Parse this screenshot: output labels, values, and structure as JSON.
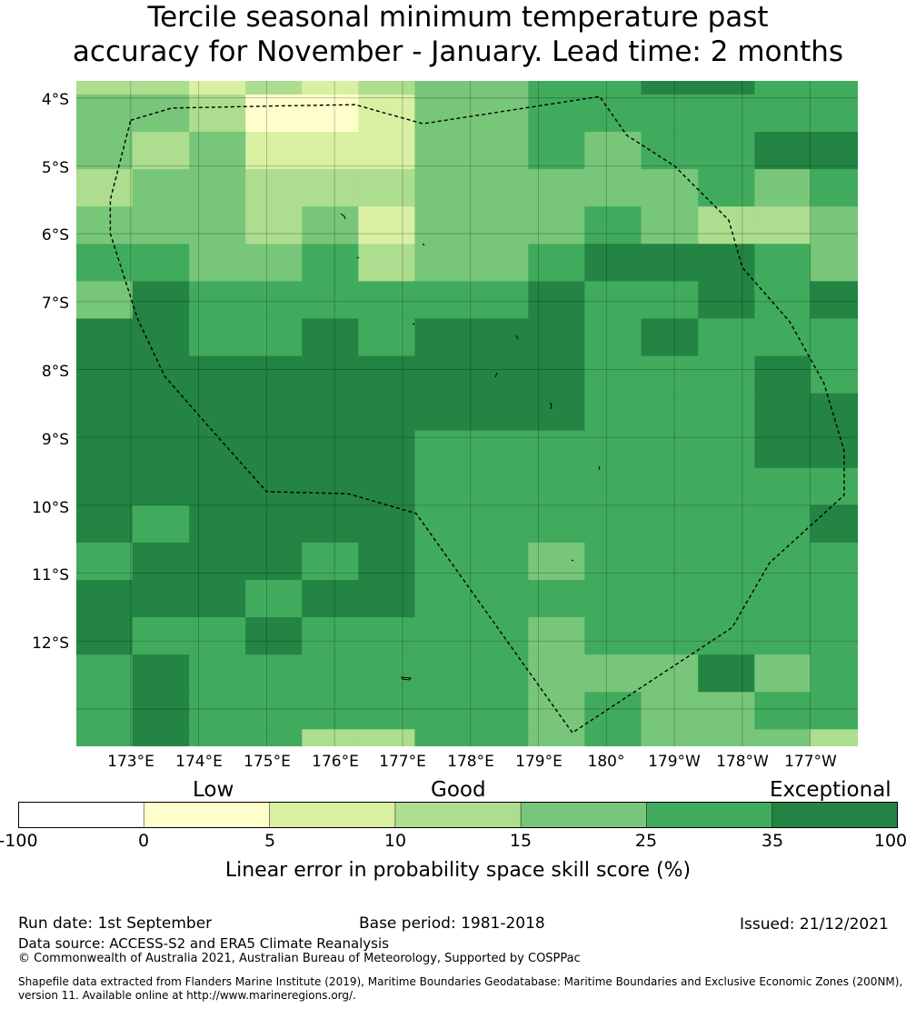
{
  "title": {
    "line1": "Tercile seasonal minimum temperature past",
    "line2": "accuracy for November - January. Lead time: 2 months"
  },
  "axes": {
    "lat_ticks": [
      "4°S",
      "5°S",
      "6°S",
      "7°S",
      "8°S",
      "9°S",
      "10°S",
      "11°S",
      "12°S"
    ],
    "lon_ticks": [
      "173°E",
      "174°E",
      "175°E",
      "176°E",
      "177°E",
      "178°E",
      "179°E",
      "180°",
      "179°W",
      "178°W",
      "177°W"
    ]
  },
  "categories": {
    "low": "Low",
    "good": "Good",
    "exceptional": "Exceptional"
  },
  "colorbar": {
    "label": "Linear error in probability space skill score (%)",
    "ticks": [
      "-100",
      "0",
      "5",
      "10",
      "15",
      "25",
      "35",
      "100"
    ],
    "colors": [
      "#ffffff",
      "#ffffcc",
      "#d9f0a3",
      "#addd8e",
      "#78c679",
      "#41ab5d",
      "#238443"
    ]
  },
  "map_data": {
    "lon_range": [
      172.2,
      183.7
    ],
    "lat_range": [
      -3.75,
      -13.55
    ],
    "cell_lon": [
      172.2,
      173.025,
      173.86,
      174.69,
      175.52,
      176.35,
      177.18,
      178.02,
      178.85,
      179.68,
      180.51,
      181.35,
      182.18,
      183.0,
      183.7
    ],
    "cell_lat": [
      -3.75,
      -3.95,
      -4.5,
      -5.05,
      -5.6,
      -6.15,
      -6.7,
      -7.25,
      -7.8,
      -8.35,
      -8.9,
      -9.45,
      -10.0,
      -10.55,
      -11.1,
      -11.65,
      -12.2,
      -12.75,
      -13.3,
      -13.55
    ],
    "grid": [
      [
        3,
        3,
        2,
        3,
        2,
        3,
        4,
        4,
        5,
        5,
        6,
        6,
        5,
        5
      ],
      [
        4,
        4,
        3,
        1,
        1,
        2,
        4,
        4,
        5,
        5,
        5,
        5,
        5,
        5
      ],
      [
        4,
        3,
        4,
        2,
        2,
        2,
        4,
        4,
        5,
        4,
        5,
        5,
        6,
        6
      ],
      [
        3,
        4,
        4,
        3,
        3,
        3,
        4,
        4,
        4,
        4,
        4,
        5,
        4,
        5
      ],
      [
        4,
        4,
        4,
        3,
        4,
        2,
        4,
        4,
        4,
        5,
        4,
        3,
        3,
        4
      ],
      [
        5,
        5,
        4,
        4,
        5,
        3,
        4,
        4,
        5,
        6,
        6,
        6,
        5,
        4
      ],
      [
        4,
        6,
        5,
        5,
        5,
        5,
        5,
        5,
        6,
        5,
        5,
        6,
        5,
        6
      ],
      [
        6,
        6,
        5,
        5,
        6,
        5,
        6,
        6,
        6,
        5,
        6,
        5,
        5,
        5
      ],
      [
        6,
        6,
        6,
        6,
        6,
        6,
        6,
        6,
        6,
        5,
        5,
        5,
        6,
        5
      ],
      [
        6,
        6,
        6,
        6,
        6,
        6,
        6,
        6,
        6,
        5,
        5,
        5,
        6,
        6
      ],
      [
        6,
        6,
        6,
        6,
        6,
        6,
        5,
        5,
        5,
        5,
        5,
        5,
        6,
        6
      ],
      [
        6,
        6,
        6,
        6,
        6,
        6,
        5,
        5,
        5,
        5,
        5,
        5,
        5,
        5
      ],
      [
        6,
        5,
        6,
        6,
        6,
        6,
        5,
        5,
        5,
        5,
        5,
        5,
        5,
        6
      ],
      [
        5,
        6,
        6,
        6,
        5,
        6,
        5,
        5,
        4,
        5,
        5,
        5,
        5,
        5
      ],
      [
        6,
        6,
        6,
        5,
        6,
        6,
        5,
        5,
        5,
        5,
        5,
        5,
        5,
        5
      ],
      [
        6,
        5,
        5,
        6,
        5,
        5,
        5,
        5,
        4,
        5,
        5,
        5,
        5,
        5
      ],
      [
        5,
        6,
        5,
        5,
        5,
        5,
        5,
        5,
        4,
        4,
        4,
        6,
        4,
        5
      ],
      [
        5,
        6,
        5,
        5,
        5,
        5,
        5,
        5,
        4,
        5,
        4,
        4,
        5,
        5
      ],
      [
        5,
        6,
        5,
        5,
        3,
        3,
        5,
        5,
        4,
        5,
        4,
        4,
        4,
        3
      ]
    ],
    "boundary": [
      [
        173.0,
        -4.33
      ],
      [
        173.6,
        -4.15
      ],
      [
        175.1,
        -4.12
      ],
      [
        176.3,
        -4.1
      ],
      [
        177.3,
        -4.38
      ],
      [
        179.9,
        -3.98
      ],
      [
        180.3,
        -4.55
      ],
      [
        181.0,
        -5.0
      ],
      [
        181.8,
        -5.8
      ],
      [
        182.0,
        -6.5
      ],
      [
        182.7,
        -7.3
      ],
      [
        183.2,
        -8.2
      ],
      [
        183.5,
        -9.2
      ],
      [
        183.5,
        -9.85
      ],
      [
        182.4,
        -10.85
      ],
      [
        181.85,
        -11.8
      ],
      [
        179.5,
        -13.35
      ],
      [
        177.2,
        -10.12
      ],
      [
        176.2,
        -9.83
      ],
      [
        175.0,
        -9.8
      ],
      [
        174.2,
        -8.9
      ],
      [
        173.5,
        -8.1
      ],
      [
        173.1,
        -7.25
      ],
      [
        172.7,
        -6.0
      ],
      [
        172.7,
        -5.5
      ],
      [
        173.0,
        -4.33
      ]
    ]
  },
  "footer": {
    "run_date": "Run date: 1st September",
    "base_period": "Base period: 1981-2018",
    "issued": "Issued: 21/12/2021",
    "data_source": "Data source: ACCESS-S2 and ERA5 Climate Reanalysis",
    "copyright": "© Commonwealth of Australia 2021, Australian Bureau of Meteorology, Supported by COSPPac",
    "shapefile_1": "Shapefile data extracted from Flanders Marine Institute (2019), Maritime Boundaries Geodatabase: Maritime Boundaries and Exclusive Economic Zones (200NM),",
    "shapefile_2": "version 11. Available online at http://www.marineregions.org/."
  }
}
